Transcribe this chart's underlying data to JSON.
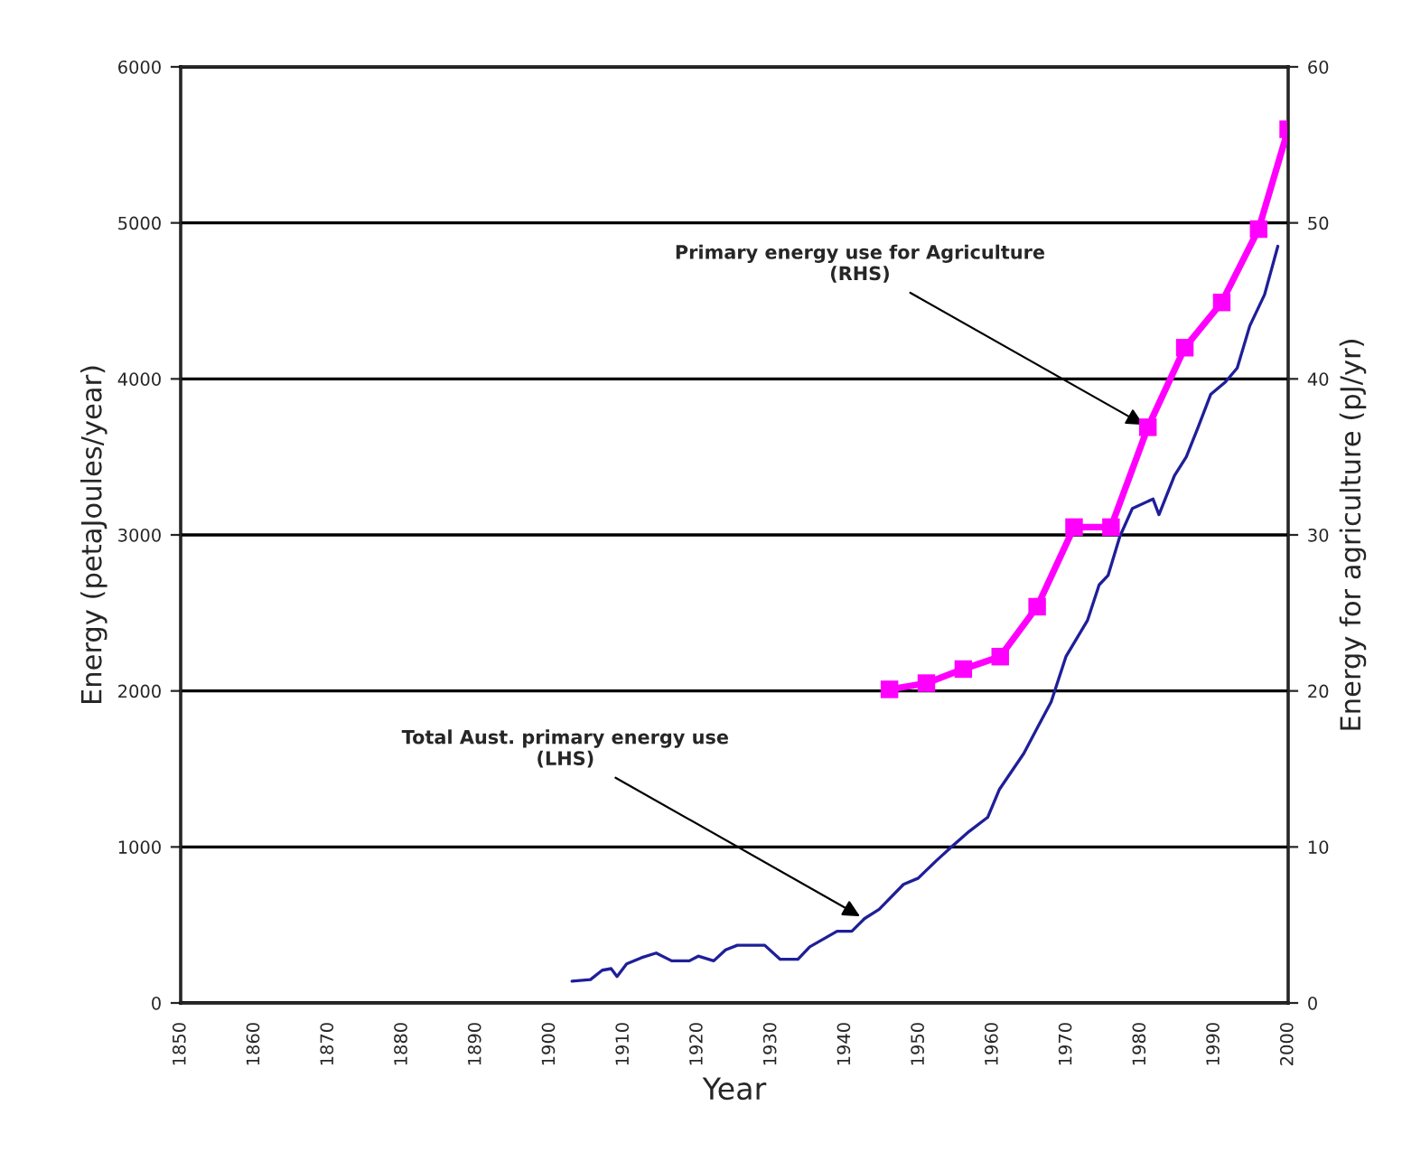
{
  "chart_data": {
    "type": "line",
    "xlabel": "Year",
    "ylabel": "Energy (petaJoules/year)",
    "y2label": "Energy for agriculture (pJ/yr)",
    "xlim": [
      1850,
      2000
    ],
    "xticks": [
      1850,
      1860,
      1870,
      1880,
      1890,
      1900,
      1910,
      1920,
      1930,
      1940,
      1950,
      1960,
      1970,
      1980,
      1990,
      2000
    ],
    "ylim": [
      0,
      6000
    ],
    "yticks": [
      0,
      1000,
      2000,
      3000,
      4000,
      5000,
      6000
    ],
    "y2lim": [
      0,
      60
    ],
    "y2ticks": [
      0,
      10,
      20,
      30,
      40,
      50,
      60
    ],
    "grid": "y",
    "legend": false,
    "series": [
      {
        "color": "#1f1f99",
        "marker": "none",
        "axis": "y",
        "x": [
          1903,
          1905.5,
          1907.1,
          1908.3,
          1909.1,
          1910.4,
          1912.4,
          1914.4,
          1916.5,
          1918.9,
          1920.1,
          1922.2,
          1923.8,
          1925.4,
          1929.1,
          1931.2,
          1933.6,
          1935.2,
          1938.9,
          1940.9,
          1942.6,
          1944.6,
          1947.9,
          1949.9,
          1952.3,
          1954.4,
          1956.8,
          1959.3,
          1960.9,
          1964.2,
          1966.2,
          1967.9,
          1969.9,
          1972.8,
          1974.4,
          1975.6,
          1977.2,
          1978.9,
          1981.7,
          1982.5,
          1984.6,
          1986.2,
          1987.8,
          1989.5,
          1991.5,
          1993.1,
          1994.8,
          1996.8,
          1998.6
        ],
        "values": [
          140,
          150,
          210,
          220,
          170,
          250,
          290,
          320,
          270,
          270,
          300,
          270,
          340,
          370,
          370,
          280,
          280,
          360,
          460,
          460,
          540,
          600,
          760,
          800,
          910,
          1000,
          1100,
          1190,
          1370,
          1600,
          1780,
          1930,
          2220,
          2450,
          2680,
          2740,
          2990,
          3170,
          3230,
          3130,
          3380,
          3500,
          3690,
          3900,
          3980,
          4070,
          4340,
          4540,
          4850
        ]
      },
      {
        "color": "#ff00ff",
        "marker": "square",
        "axis": "y2",
        "x": [
          1946,
          1951,
          1956,
          1961,
          1966,
          1971,
          1976,
          1981,
          1986,
          1991,
          1996,
          2000
        ],
        "values": [
          20.1,
          20.5,
          21.4,
          22.2,
          25.4,
          30.5,
          30.5,
          36.9,
          42.0,
          44.9,
          49.6,
          56.0
        ]
      }
    ],
    "annotations": [
      {
        "text": "Total Aust. primary energy use\n(LHS)",
        "x": 1942.6,
        "y": 540
      },
      {
        "text": "Primary energy use for Agriculture\n(RHS)",
        "x": 1981,
        "y": 3690
      }
    ]
  }
}
